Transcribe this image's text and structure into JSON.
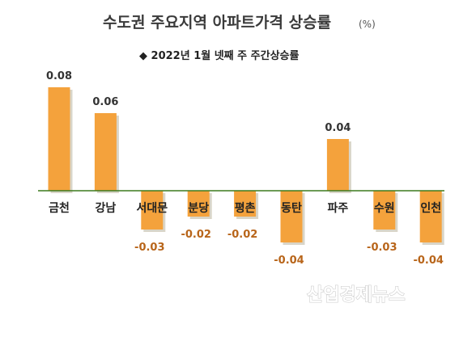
{
  "title": "수도권 주요지역 아파트가격 상승률",
  "unit": "(%)",
  "subtitle": "◆ 2022년 1월 넷째 주 주간상승률",
  "watermark": "산업경제뉴스",
  "colors": {
    "bar": "#f4a23c",
    "bar_shadow": "#d9d5c8",
    "axis": "#3c7a1e",
    "negative_label": "#b8651a"
  },
  "chart_data": {
    "type": "bar",
    "title": "수도권 주요지역 아파트가격 상승률",
    "categories": [
      "금천",
      "강남",
      "서대문",
      "분당",
      "평촌",
      "동탄",
      "파주",
      "수원",
      "인천"
    ],
    "values": [
      0.08,
      0.06,
      -0.03,
      -0.02,
      -0.02,
      -0.04,
      0.04,
      -0.03,
      -0.04
    ],
    "value_labels": [
      "0.08",
      "0.06",
      "-0.03",
      "-0.02",
      "-0.02",
      "-0.04",
      "0.04",
      "-0.03",
      "-0.04"
    ],
    "ylim": [
      -0.04,
      0.08
    ],
    "grid": false,
    "legend": "none"
  }
}
